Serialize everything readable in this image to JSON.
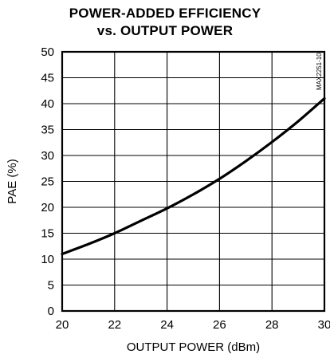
{
  "chart_data": {
    "type": "line",
    "title_line1": "POWER-ADDED EFFICIENCY",
    "title_line2": "vs. OUTPUT POWER",
    "xlabel": "OUTPUT POWER (dBm)",
    "ylabel": "PAE (%)",
    "part_code": "MAX2251-10",
    "xlim": [
      20,
      30
    ],
    "ylim": [
      0,
      50
    ],
    "x_ticks": [
      20,
      22,
      24,
      26,
      28,
      30
    ],
    "y_ticks": [
      0,
      5,
      10,
      15,
      20,
      25,
      30,
      35,
      40,
      45,
      50
    ],
    "grid": true,
    "series": [
      {
        "x": [
          20,
          21,
          22,
          23,
          24,
          25,
          26,
          27,
          28,
          29,
          30
        ],
        "y": [
          11.0,
          12.9,
          15.0,
          17.4,
          19.8,
          22.5,
          25.5,
          28.9,
          32.6,
          36.6,
          41.0
        ]
      }
    ]
  }
}
